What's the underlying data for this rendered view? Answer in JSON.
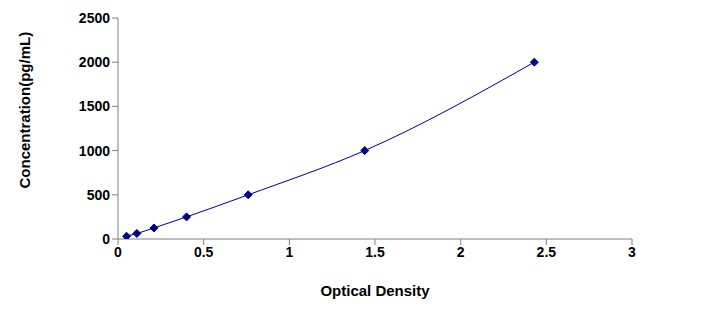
{
  "chart_data": {
    "type": "line",
    "x_label": "Optical Density",
    "y_label": "Concentration(pg/mL)",
    "x": [
      0.05,
      0.11,
      0.21,
      0.4,
      0.76,
      1.44,
      2.43
    ],
    "values": [
      31.25,
      62.5,
      125,
      250,
      500,
      1000,
      2000
    ],
    "color": "#00008b",
    "marker": "diamond",
    "xlim": [
      0,
      3
    ],
    "xticks": [
      0,
      0.5,
      1,
      1.5,
      2,
      2.5,
      3
    ],
    "ylim": [
      0,
      2500
    ],
    "yticks": [
      0,
      500,
      1000,
      1500,
      2000,
      2500
    ],
    "grid": false
  }
}
